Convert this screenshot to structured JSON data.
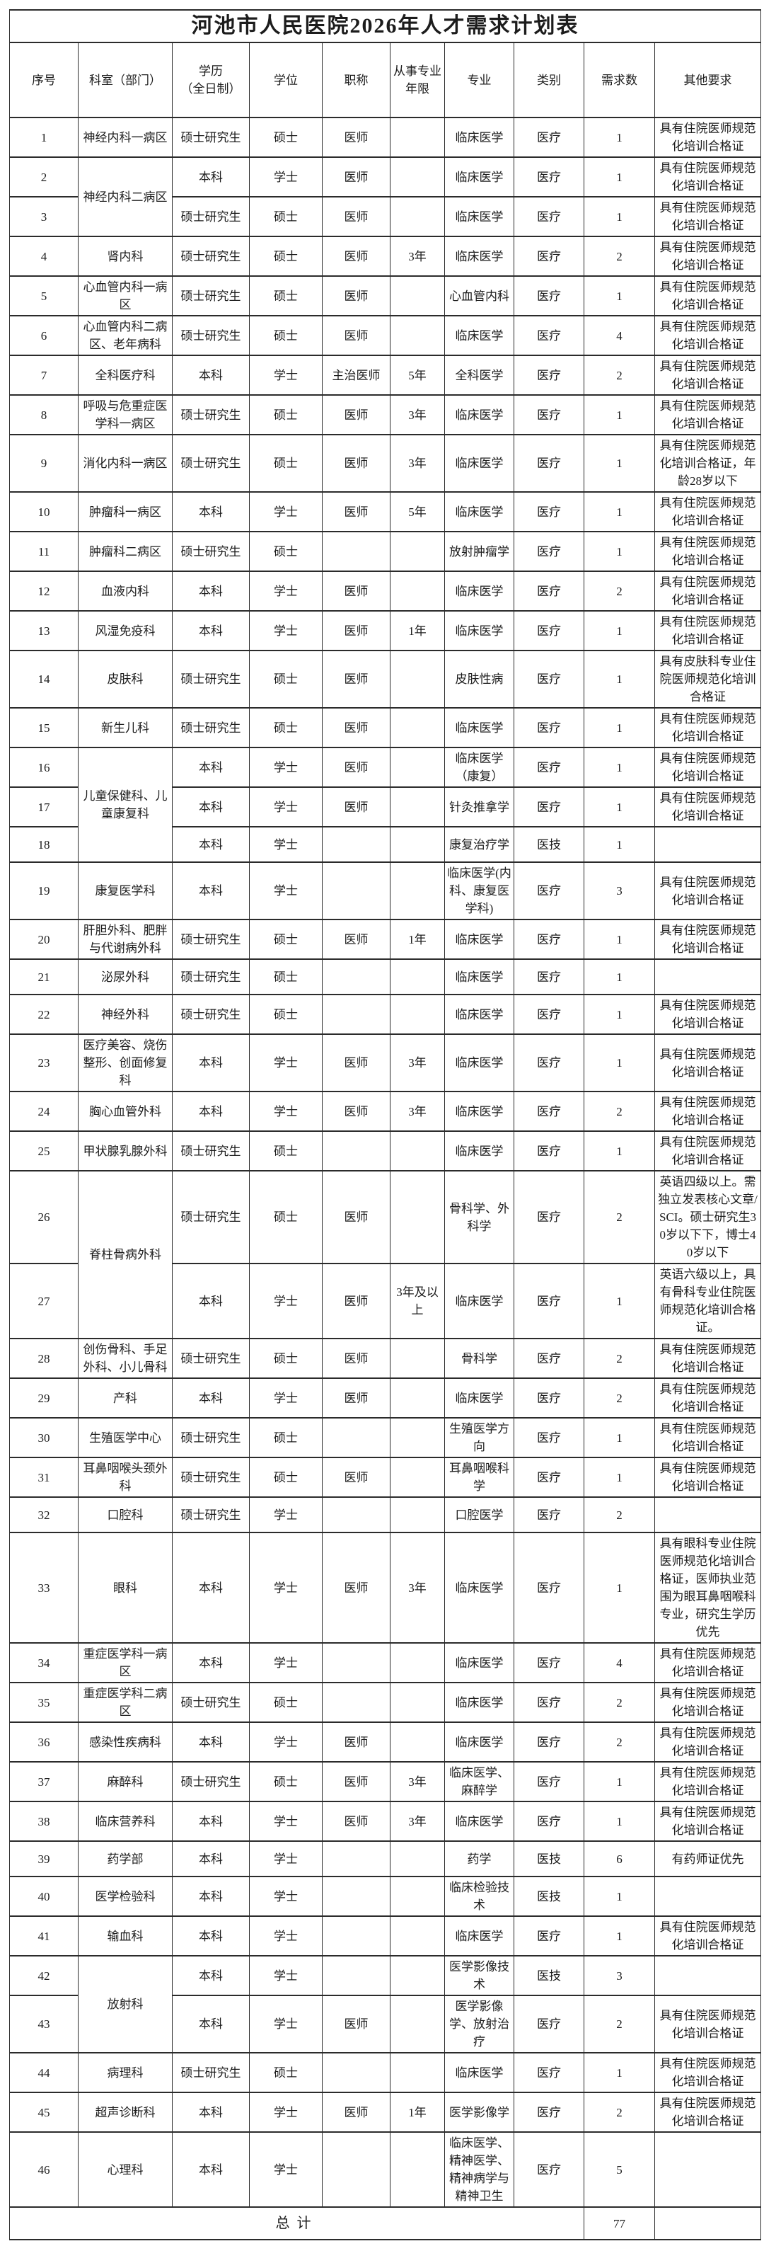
{
  "title": "河池市人民医院2026年人才需求计划表",
  "columns": [
    "序号",
    "科室（部门）",
    "学历\n（全日制）",
    "学位",
    "职称",
    "从事专业\n年限",
    "专业",
    "类别",
    "需求数",
    "其他要求"
  ],
  "rows": [
    {
      "no": "1",
      "dept": "神经内科一病区",
      "dept_rowspan": 1,
      "edu": "硕士研究生",
      "degree": "硕士",
      "title": "医师",
      "years": "",
      "major": "临床医学",
      "category": "医疗",
      "count": "1",
      "other": "具有住院医师规范化培训合格证"
    },
    {
      "no": "2",
      "dept": "神经内科二病区",
      "dept_rowspan": 2,
      "edu": "本科",
      "degree": "学士",
      "title": "医师",
      "years": "",
      "major": "临床医学",
      "category": "医疗",
      "count": "1",
      "other": "具有住院医师规范化培训合格证"
    },
    {
      "no": "3",
      "dept": null,
      "edu": "硕士研究生",
      "degree": "硕士",
      "title": "医师",
      "years": "",
      "major": "临床医学",
      "category": "医疗",
      "count": "1",
      "other": "具有住院医师规范化培训合格证"
    },
    {
      "no": "4",
      "dept": "肾内科",
      "dept_rowspan": 1,
      "edu": "硕士研究生",
      "degree": "硕士",
      "title": "医师",
      "years": "3年",
      "major": "临床医学",
      "category": "医疗",
      "count": "2",
      "other": "具有住院医师规范化培训合格证"
    },
    {
      "no": "5",
      "dept": "心血管内科一病区",
      "dept_rowspan": 1,
      "edu": "硕士研究生",
      "degree": "硕士",
      "title": "医师",
      "years": "",
      "major": "心血管内科",
      "category": "医疗",
      "count": "1",
      "other": "具有住院医师规范化培训合格证"
    },
    {
      "no": "6",
      "dept": "心血管内科二病区、老年病科",
      "dept_rowspan": 1,
      "edu": "硕士研究生",
      "degree": "硕士",
      "title": "医师",
      "years": "",
      "major": "临床医学",
      "category": "医疗",
      "count": "4",
      "other": "具有住院医师规范化培训合格证"
    },
    {
      "no": "7",
      "dept": "全科医疗科",
      "dept_rowspan": 1,
      "edu": "本科",
      "degree": "学士",
      "title": "主治医师",
      "years": "5年",
      "major": "全科医学",
      "category": "医疗",
      "count": "2",
      "other": "具有住院医师规范化培训合格证"
    },
    {
      "no": "8",
      "dept": "呼吸与危重症医学科一病区",
      "dept_rowspan": 1,
      "edu": "硕士研究生",
      "degree": "硕士",
      "title": "医师",
      "years": "3年",
      "major": "临床医学",
      "category": "医疗",
      "count": "1",
      "other": "具有住院医师规范化培训合格证"
    },
    {
      "no": "9",
      "dept": "消化内科一病区",
      "dept_rowspan": 1,
      "edu": "硕士研究生",
      "degree": "硕士",
      "title": "医师",
      "years": "3年",
      "major": "临床医学",
      "category": "医疗",
      "count": "1",
      "other": "具有住院医师规范化培训合格证，年龄28岁以下"
    },
    {
      "no": "10",
      "dept": "肿瘤科一病区",
      "dept_rowspan": 1,
      "edu": "本科",
      "degree": "学士",
      "title": "医师",
      "years": "5年",
      "major": "临床医学",
      "category": "医疗",
      "count": "1",
      "other": "具有住院医师规范化培训合格证"
    },
    {
      "no": "11",
      "dept": "肿瘤科二病区",
      "dept_rowspan": 1,
      "edu": "硕士研究生",
      "degree": "硕士",
      "title": "",
      "years": "",
      "major": "放射肿瘤学",
      "category": "医疗",
      "count": "1",
      "other": "具有住院医师规范化培训合格证"
    },
    {
      "no": "12",
      "dept": "血液内科",
      "dept_rowspan": 1,
      "edu": "本科",
      "degree": "学士",
      "title": "医师",
      "years": "",
      "major": "临床医学",
      "category": "医疗",
      "count": "2",
      "other": "具有住院医师规范化培训合格证"
    },
    {
      "no": "13",
      "dept": "风湿免疫科",
      "dept_rowspan": 1,
      "edu": "本科",
      "degree": "学士",
      "title": "医师",
      "years": "1年",
      "major": "临床医学",
      "category": "医疗",
      "count": "1",
      "other": "具有住院医师规范化培训合格证"
    },
    {
      "no": "14",
      "dept": "皮肤科",
      "dept_rowspan": 1,
      "edu": "硕士研究生",
      "degree": "硕士",
      "title": "医师",
      "years": "",
      "major": "皮肤性病",
      "category": "医疗",
      "count": "1",
      "other": "具有皮肤科专业住院医师规范化培训合格证"
    },
    {
      "no": "15",
      "dept": "新生儿科",
      "dept_rowspan": 1,
      "edu": "硕士研究生",
      "degree": "硕士",
      "title": "医师",
      "years": "",
      "major": "临床医学",
      "category": "医疗",
      "count": "1",
      "other": "具有住院医师规范化培训合格证"
    },
    {
      "no": "16",
      "dept": "儿童保健科、儿童康复科",
      "dept_rowspan": 3,
      "edu": "本科",
      "degree": "学士",
      "title": "医师",
      "years": "",
      "major": "临床医学\n（康复）",
      "category": "医疗",
      "count": "1",
      "other": "具有住院医师规范化培训合格证"
    },
    {
      "no": "17",
      "dept": null,
      "edu": "本科",
      "degree": "学士",
      "title": "医师",
      "years": "",
      "major": "针灸推拿学",
      "category": "医疗",
      "count": "1",
      "other": "具有住院医师规范化培训合格证"
    },
    {
      "no": "18",
      "dept": null,
      "edu": "本科",
      "degree": "学士",
      "title": "",
      "years": "",
      "major": "康复治疗学",
      "category": "医技",
      "count": "1",
      "other": ""
    },
    {
      "no": "19",
      "dept": "康复医学科",
      "dept_rowspan": 1,
      "edu": "本科",
      "degree": "学士",
      "title": "",
      "years": "",
      "major": "临床医学(内科、康复医学科)",
      "category": "医疗",
      "count": "3",
      "other": "具有住院医师规范化培训合格证"
    },
    {
      "no": "20",
      "dept": "肝胆外科、肥胖与代谢病外科",
      "dept_rowspan": 1,
      "edu": "硕士研究生",
      "degree": "硕士",
      "title": "医师",
      "years": "1年",
      "major": "临床医学",
      "category": "医疗",
      "count": "1",
      "other": "具有住院医师规范化培训合格证"
    },
    {
      "no": "21",
      "dept": "泌尿外科",
      "dept_rowspan": 1,
      "edu": "硕士研究生",
      "degree": "硕士",
      "title": "",
      "years": "",
      "major": "临床医学",
      "category": "医疗",
      "count": "1",
      "other": ""
    },
    {
      "no": "22",
      "dept": "神经外科",
      "dept_rowspan": 1,
      "edu": "硕士研究生",
      "degree": "硕士",
      "title": "",
      "years": "",
      "major": "临床医学",
      "category": "医疗",
      "count": "1",
      "other": "具有住院医师规范化培训合格证"
    },
    {
      "no": "23",
      "dept": "医疗美容、烧伤整形、创面修复科",
      "dept_rowspan": 1,
      "edu": "本科",
      "degree": "学士",
      "title": "医师",
      "years": "3年",
      "major": "临床医学",
      "category": "医疗",
      "count": "1",
      "other": "具有住院医师规范化培训合格证"
    },
    {
      "no": "24",
      "dept": "胸心血管外科",
      "dept_rowspan": 1,
      "edu": "本科",
      "degree": "学士",
      "title": "医师",
      "years": "3年",
      "major": "临床医学",
      "category": "医疗",
      "count": "2",
      "other": "具有住院医师规范化培训合格证"
    },
    {
      "no": "25",
      "dept": "甲状腺乳腺外科",
      "dept_rowspan": 1,
      "edu": "硕士研究生",
      "degree": "硕士",
      "title": "",
      "years": "",
      "major": "临床医学",
      "category": "医疗",
      "count": "1",
      "other": "具有住院医师规范化培训合格证"
    },
    {
      "no": "26",
      "dept": "脊柱骨病外科",
      "dept_rowspan": 2,
      "edu": "硕士研究生",
      "degree": "硕士",
      "title": "医师",
      "years": "",
      "major": "骨科学、外科学",
      "category": "医疗",
      "count": "2",
      "other": "英语四级以上。需独立发表核心文章/SCI。硕士研究生30岁以下下，博士40岁以下"
    },
    {
      "no": "27",
      "dept": null,
      "edu": "本科",
      "degree": "学士",
      "title": "医师",
      "years": "3年及以上",
      "major": "临床医学",
      "category": "医疗",
      "count": "1",
      "other": "英语六级以上，具有骨科专业住院医师规范化培训合格证。"
    },
    {
      "no": "28",
      "dept": "创伤骨科、手足外科、小儿骨科",
      "dept_rowspan": 1,
      "edu": "硕士研究生",
      "degree": "硕士",
      "title": "医师",
      "years": "",
      "major": "骨科学",
      "category": "医疗",
      "count": "2",
      "other": "具有住院医师规范化培训合格证"
    },
    {
      "no": "29",
      "dept": "产科",
      "dept_rowspan": 1,
      "edu": "本科",
      "degree": "学士",
      "title": "医师",
      "years": "",
      "major": "临床医学",
      "category": "医疗",
      "count": "2",
      "other": "具有住院医师规范化培训合格证"
    },
    {
      "no": "30",
      "dept": "生殖医学中心",
      "dept_rowspan": 1,
      "edu": "硕士研究生",
      "degree": "硕士",
      "title": "",
      "years": "",
      "major": "生殖医学方向",
      "category": "医疗",
      "count": "1",
      "other": "具有住院医师规范化培训合格证"
    },
    {
      "no": "31",
      "dept": "耳鼻咽喉头颈外科",
      "dept_rowspan": 1,
      "edu": "硕士研究生",
      "degree": "硕士",
      "title": "医师",
      "years": "",
      "major": "耳鼻咽喉科学",
      "category": "医疗",
      "count": "1",
      "other": "具有住院医师规范化培训合格证"
    },
    {
      "no": "32",
      "dept": "口腔科",
      "dept_rowspan": 1,
      "edu": "硕士研究生",
      "degree": "学士",
      "title": "",
      "years": "",
      "major": "口腔医学",
      "category": "医疗",
      "count": "2",
      "other": ""
    },
    {
      "no": "33",
      "dept": "眼科",
      "dept_rowspan": 1,
      "edu": "本科",
      "degree": "学士",
      "title": "医师",
      "years": "3年",
      "major": "临床医学",
      "category": "医疗",
      "count": "1",
      "other": "具有眼科专业住院医师规范化培训合格证，医师执业范围为眼耳鼻咽喉科专业，研究生学历优先"
    },
    {
      "no": "34",
      "dept": "重症医学科一病区",
      "dept_rowspan": 1,
      "edu": "本科",
      "degree": "学士",
      "title": "",
      "years": "",
      "major": "临床医学",
      "category": "医疗",
      "count": "4",
      "other": "具有住院医师规范化培训合格证"
    },
    {
      "no": "35",
      "dept": "重症医学科二病区",
      "dept_rowspan": 1,
      "edu": "硕士研究生",
      "degree": "硕士",
      "title": "",
      "years": "",
      "major": "临床医学",
      "category": "医疗",
      "count": "2",
      "other": "具有住院医师规范化培训合格证"
    },
    {
      "no": "36",
      "dept": "感染性疾病科",
      "dept_rowspan": 1,
      "edu": "本科",
      "degree": "学士",
      "title": "医师",
      "years": "",
      "major": "临床医学",
      "category": "医疗",
      "count": "2",
      "other": "具有住院医师规范化培训合格证"
    },
    {
      "no": "37",
      "dept": "麻醉科",
      "dept_rowspan": 1,
      "edu": "硕士研究生",
      "degree": "硕士",
      "title": "医师",
      "years": "3年",
      "major": "临床医学、麻醉学",
      "category": "医疗",
      "count": "1",
      "other": "具有住院医师规范化培训合格证"
    },
    {
      "no": "38",
      "dept": "临床营养科",
      "dept_rowspan": 1,
      "edu": "本科",
      "degree": "学士",
      "title": "医师",
      "years": "3年",
      "major": "临床医学",
      "category": "医疗",
      "count": "1",
      "other": "具有住院医师规范化培训合格证"
    },
    {
      "no": "39",
      "dept": "药学部",
      "dept_rowspan": 1,
      "edu": "本科",
      "degree": "学士",
      "title": "",
      "years": "",
      "major": "药学",
      "category": "医技",
      "count": "6",
      "other": "有药师证优先"
    },
    {
      "no": "40",
      "dept": "医学检验科",
      "dept_rowspan": 1,
      "edu": "本科",
      "degree": "学士",
      "title": "",
      "years": "",
      "major": "临床检验技术",
      "category": "医技",
      "count": "1",
      "other": ""
    },
    {
      "no": "41",
      "dept": "输血科",
      "dept_rowspan": 1,
      "edu": "本科",
      "degree": "学士",
      "title": "",
      "years": "",
      "major": "临床医学",
      "category": "医疗",
      "count": "1",
      "other": "具有住院医师规范化培训合格证"
    },
    {
      "no": "42",
      "dept": "放射科",
      "dept_rowspan": 2,
      "edu": "本科",
      "degree": "学士",
      "title": "",
      "years": "",
      "major": "医学影像技术",
      "category": "医技",
      "count": "3",
      "other": ""
    },
    {
      "no": "43",
      "dept": null,
      "edu": "本科",
      "degree": "学士",
      "title": "医师",
      "years": "",
      "major": "医学影像学、放射治疗",
      "category": "医疗",
      "count": "2",
      "other": "具有住院医师规范化培训合格证"
    },
    {
      "no": "44",
      "dept": "病理科",
      "dept_rowspan": 1,
      "edu": "硕士研究生",
      "degree": "硕士",
      "title": "",
      "years": "",
      "major": "临床医学",
      "category": "医疗",
      "count": "1",
      "other": "具有住院医师规范化培训合格证"
    },
    {
      "no": "45",
      "dept": "超声诊断科",
      "dept_rowspan": 1,
      "edu": "本科",
      "degree": "学士",
      "title": "医师",
      "years": "1年",
      "major": "医学影像学",
      "category": "医疗",
      "count": "2",
      "other": "具有住院医师规范化培训合格证"
    },
    {
      "no": "46",
      "dept": "心理科",
      "dept_rowspan": 1,
      "edu": "本科",
      "degree": "学士",
      "title": "",
      "years": "",
      "major": "临床医学、精神医学、精神病学与精神卫生",
      "category": "医疗",
      "count": "5",
      "other": ""
    }
  ],
  "footer": {
    "label": "总计",
    "total": "77"
  }
}
